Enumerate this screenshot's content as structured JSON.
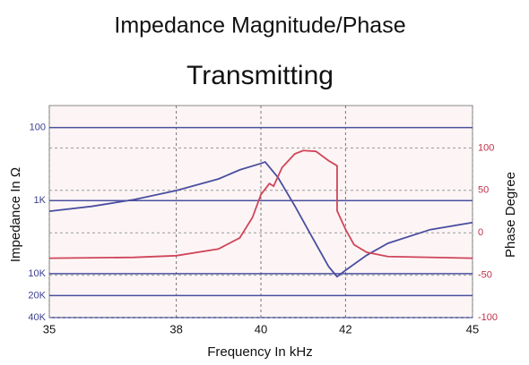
{
  "chart_data": {
    "type": "line",
    "title": "Impedance Magnitude/Phase",
    "subtitle": "Transmitting",
    "x_label": "Frequency In kHz",
    "y_label": "Impedance In Ω",
    "y2_label": "Phase Degree",
    "xlim": [
      35,
      45
    ],
    "xticks": [
      35,
      38,
      40,
      42,
      45
    ],
    "ylim": [
      50,
      40000
    ],
    "y_log": true,
    "y_reversed": true,
    "yticks": [
      100,
      {
        "value": 1000,
        "label": "1K"
      },
      {
        "value": 10000,
        "label": "10K"
      },
      {
        "value": 20000,
        "label": "20K"
      },
      {
        "value": 40000,
        "label": "40K"
      }
    ],
    "y2lim": [
      -100,
      150
    ],
    "y2ticks": [
      100,
      50,
      0,
      -50,
      -100
    ],
    "grid": true,
    "series": [
      {
        "name": "Impedance",
        "color": "#4a4fa0",
        "x": [
          35,
          36,
          37,
          38,
          39,
          39.5,
          40,
          40.1,
          40.4,
          40.8,
          41.2,
          41.6,
          41.8,
          42,
          42.5,
          43,
          44,
          45
        ],
        "values": [
          1400,
          1200,
          970,
          730,
          505,
          380,
          310,
          296,
          480,
          1180,
          3090,
          8000,
          11000,
          9000,
          5600,
          3850,
          2500,
          2000
        ]
      },
      {
        "name": "Phase",
        "color": "#d0455a",
        "axis": "y2",
        "x": [
          35,
          37,
          38,
          39,
          39.5,
          39.8,
          40,
          40.2,
          40.3,
          40.5,
          40.8,
          41,
          41.3,
          41.6,
          41.8,
          41.8,
          42,
          42.2,
          42.5,
          43,
          45
        ],
        "values": [
          -30,
          -29,
          -27,
          -19,
          -6,
          18,
          45,
          58,
          55,
          77,
          93,
          97,
          96,
          85,
          79,
          26,
          4,
          -14,
          -23,
          -28,
          -30
        ]
      }
    ]
  }
}
